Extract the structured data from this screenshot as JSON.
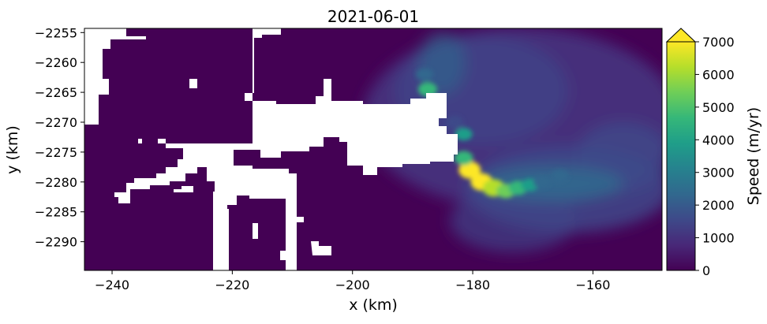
{
  "chart_data": {
    "type": "heatmap",
    "title": "2021-06-01",
    "xlabel": "x (km)",
    "ylabel": "y (km)",
    "xlim": [
      -244.6,
      -148.5
    ],
    "ylim": [
      -2294.8,
      -2254.3
    ],
    "x_ticks": [
      -240,
      -220,
      -200,
      -180,
      -160
    ],
    "y_ticks": [
      -2255,
      -2260,
      -2265,
      -2270,
      -2275,
      -2280,
      -2285,
      -2290
    ],
    "colorbar": {
      "label": "Speed (m/yr)",
      "min": 0,
      "max": 7000,
      "ticks": [
        0,
        1000,
        2000,
        3000,
        4000,
        5000,
        6000,
        7000
      ],
      "extend": "max",
      "colormap": "viridis"
    },
    "colormap_stops": [
      "#440154",
      "#482878",
      "#3e4989",
      "#31688e",
      "#26828e",
      "#1f9e89",
      "#35b779",
      "#6ece58",
      "#b5de2b",
      "#fde725"
    ],
    "no_data_color": "#ffffff",
    "fast_flow_regions": [
      {
        "x": -180.5,
        "y": -2278.0,
        "speed": 7000
      },
      {
        "x": -178.5,
        "y": -2280.0,
        "speed": 7000
      },
      {
        "x": -176.5,
        "y": -2281.0,
        "speed": 6500
      },
      {
        "x": -174.5,
        "y": -2281.5,
        "speed": 5200
      },
      {
        "x": -172.5,
        "y": -2281.0,
        "speed": 4400
      },
      {
        "x": -170.5,
        "y": -2280.5,
        "speed": 3800
      },
      {
        "x": -168.5,
        "y": -2280.0,
        "speed": 2700
      },
      {
        "x": -165.5,
        "y": -2279.0,
        "speed": 2000
      },
      {
        "x": -181.5,
        "y": -2276.0,
        "speed": 4500
      },
      {
        "x": -181.5,
        "y": -2272.0,
        "speed": 3500
      },
      {
        "x": -187.5,
        "y": -2264.5,
        "speed": 4600
      },
      {
        "x": -188.0,
        "y": -2262.0,
        "speed": 2200
      },
      {
        "x": -183.0,
        "y": -2270.0,
        "speed": 1800
      }
    ]
  }
}
